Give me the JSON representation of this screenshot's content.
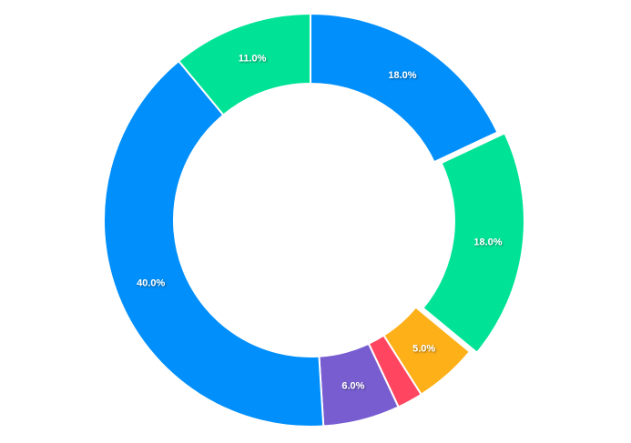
{
  "chart_data": {
    "type": "donut",
    "values": [
      18,
      18,
      5,
      2,
      6,
      40,
      11
    ],
    "value_labels": [
      "18.0%",
      "18.0%",
      "5.0%",
      null,
      "6.0%",
      "40.0%",
      "11.0%"
    ],
    "colors": [
      "#008FFB",
      "#00E396",
      "#FEB019",
      "#FF4560",
      "#775DD0",
      "#008FFB",
      "#00E396"
    ],
    "exploded": [
      1
    ]
  }
}
